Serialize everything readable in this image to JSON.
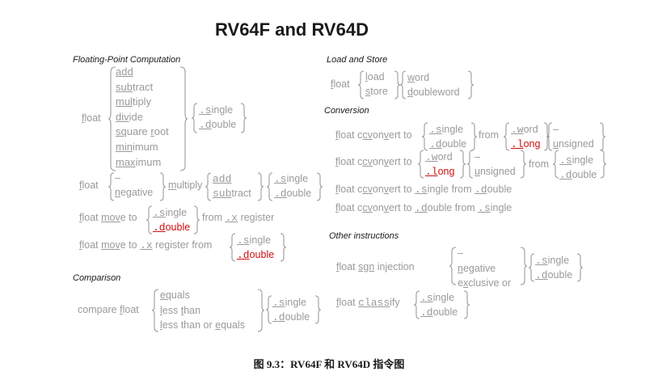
{
  "title": "RV64F and RV64D",
  "caption": "图 9.3：RV64F 和 RV64D 指令图",
  "sections": {
    "fp_computation": "Floating-Point  Computation",
    "load_store": "Load and Store",
    "conversion": "Conversion",
    "other": "Other instructions",
    "comparison": "Comparison"
  },
  "float": "float",
  "compute": {
    "ops": [
      {
        "u": "add",
        "r": ""
      },
      {
        "u": "sub",
        "r": "tract"
      },
      {
        "u": "mul",
        "r": "tiply"
      },
      {
        "u": "div",
        "r": "ide"
      },
      {
        "u": "sq",
        "r": "uare ",
        "u2": "r",
        "r2": "oot"
      },
      {
        "u": "min",
        "r": "imum"
      },
      {
        "u": "max",
        "r": "imum"
      }
    ]
  },
  "fused": {
    "neg_dash": "–",
    "negative_u": "n",
    "negative_r": "egative",
    "multiply_u": "m",
    "multiply_r": "ultiply",
    "add": "add",
    "sub_u": "sub",
    "sub_r": "tract"
  },
  "sizes": {
    "single_u": ".s",
    "single_r": "ingle",
    "double_u": ".d",
    "double_r": "ouble"
  },
  "move": {
    "to_x": {
      "p1": "f",
      "p2": "loat ",
      "p3": "mo",
      "p4": "v",
      "p5": "e to ",
      "from": "from ",
      "x_u": ".x",
      "reg": " register"
    },
    "from_x": {
      "p1": "f",
      "p2": "loat ",
      "p3": "mo",
      "p4": "v",
      "p5": "e to ",
      "x_u": ".x",
      "reg": " register from"
    }
  },
  "compare": {
    "label_pre": "compare ",
    "label_u": "f",
    "label_r": "loat",
    "ops": [
      {
        "u": "eq",
        "r": "uals"
      },
      {
        "u": "l",
        "r": "ess ",
        "u2": "t",
        "r2": "han"
      },
      {
        "u": "l",
        "r": "ess than or ",
        "u2": "e",
        "r2": "quals"
      }
    ]
  },
  "loadstore": {
    "load_u": "l",
    "load_r": "oad",
    "store_u": "s",
    "store_r": "tore",
    "word_u": "w",
    "word_r": "ord",
    "dword_u": "d",
    "dword_r": "oubleword"
  },
  "conv": {
    "cv_u": "cv",
    "convert_mid": "on",
    "convert_u2": "v",
    "convert_r": "ert",
    "to": "to ",
    "from": "from",
    "word_u": ".w",
    "word_r": "ord",
    "long_u": ".l",
    "long_r": "ong",
    "dash": "–",
    "unsigned_u": "u",
    "unsigned_r": "nsigned",
    "single_from_double_a": ".s",
    "single_from_double_b": "ingle from ",
    "single_from_double_c": ".d",
    "single_from_double_d": "ouble",
    "double_from_single_a": ".d",
    "double_from_single_b": "ouble from ",
    "double_from_single_c": ".s",
    "double_from_single_d": "ingle"
  },
  "sign": {
    "sign_u": "sgn",
    "inj_u": "j",
    "inj_pre": "in",
    "inj_r": "ection",
    "negative_u": "n",
    "negative_r": "egative",
    "xor_u": "x",
    "xor_pre": "e",
    "xor_r": "clusive or"
  },
  "classify": {
    "u": "class",
    "r": "ify"
  }
}
